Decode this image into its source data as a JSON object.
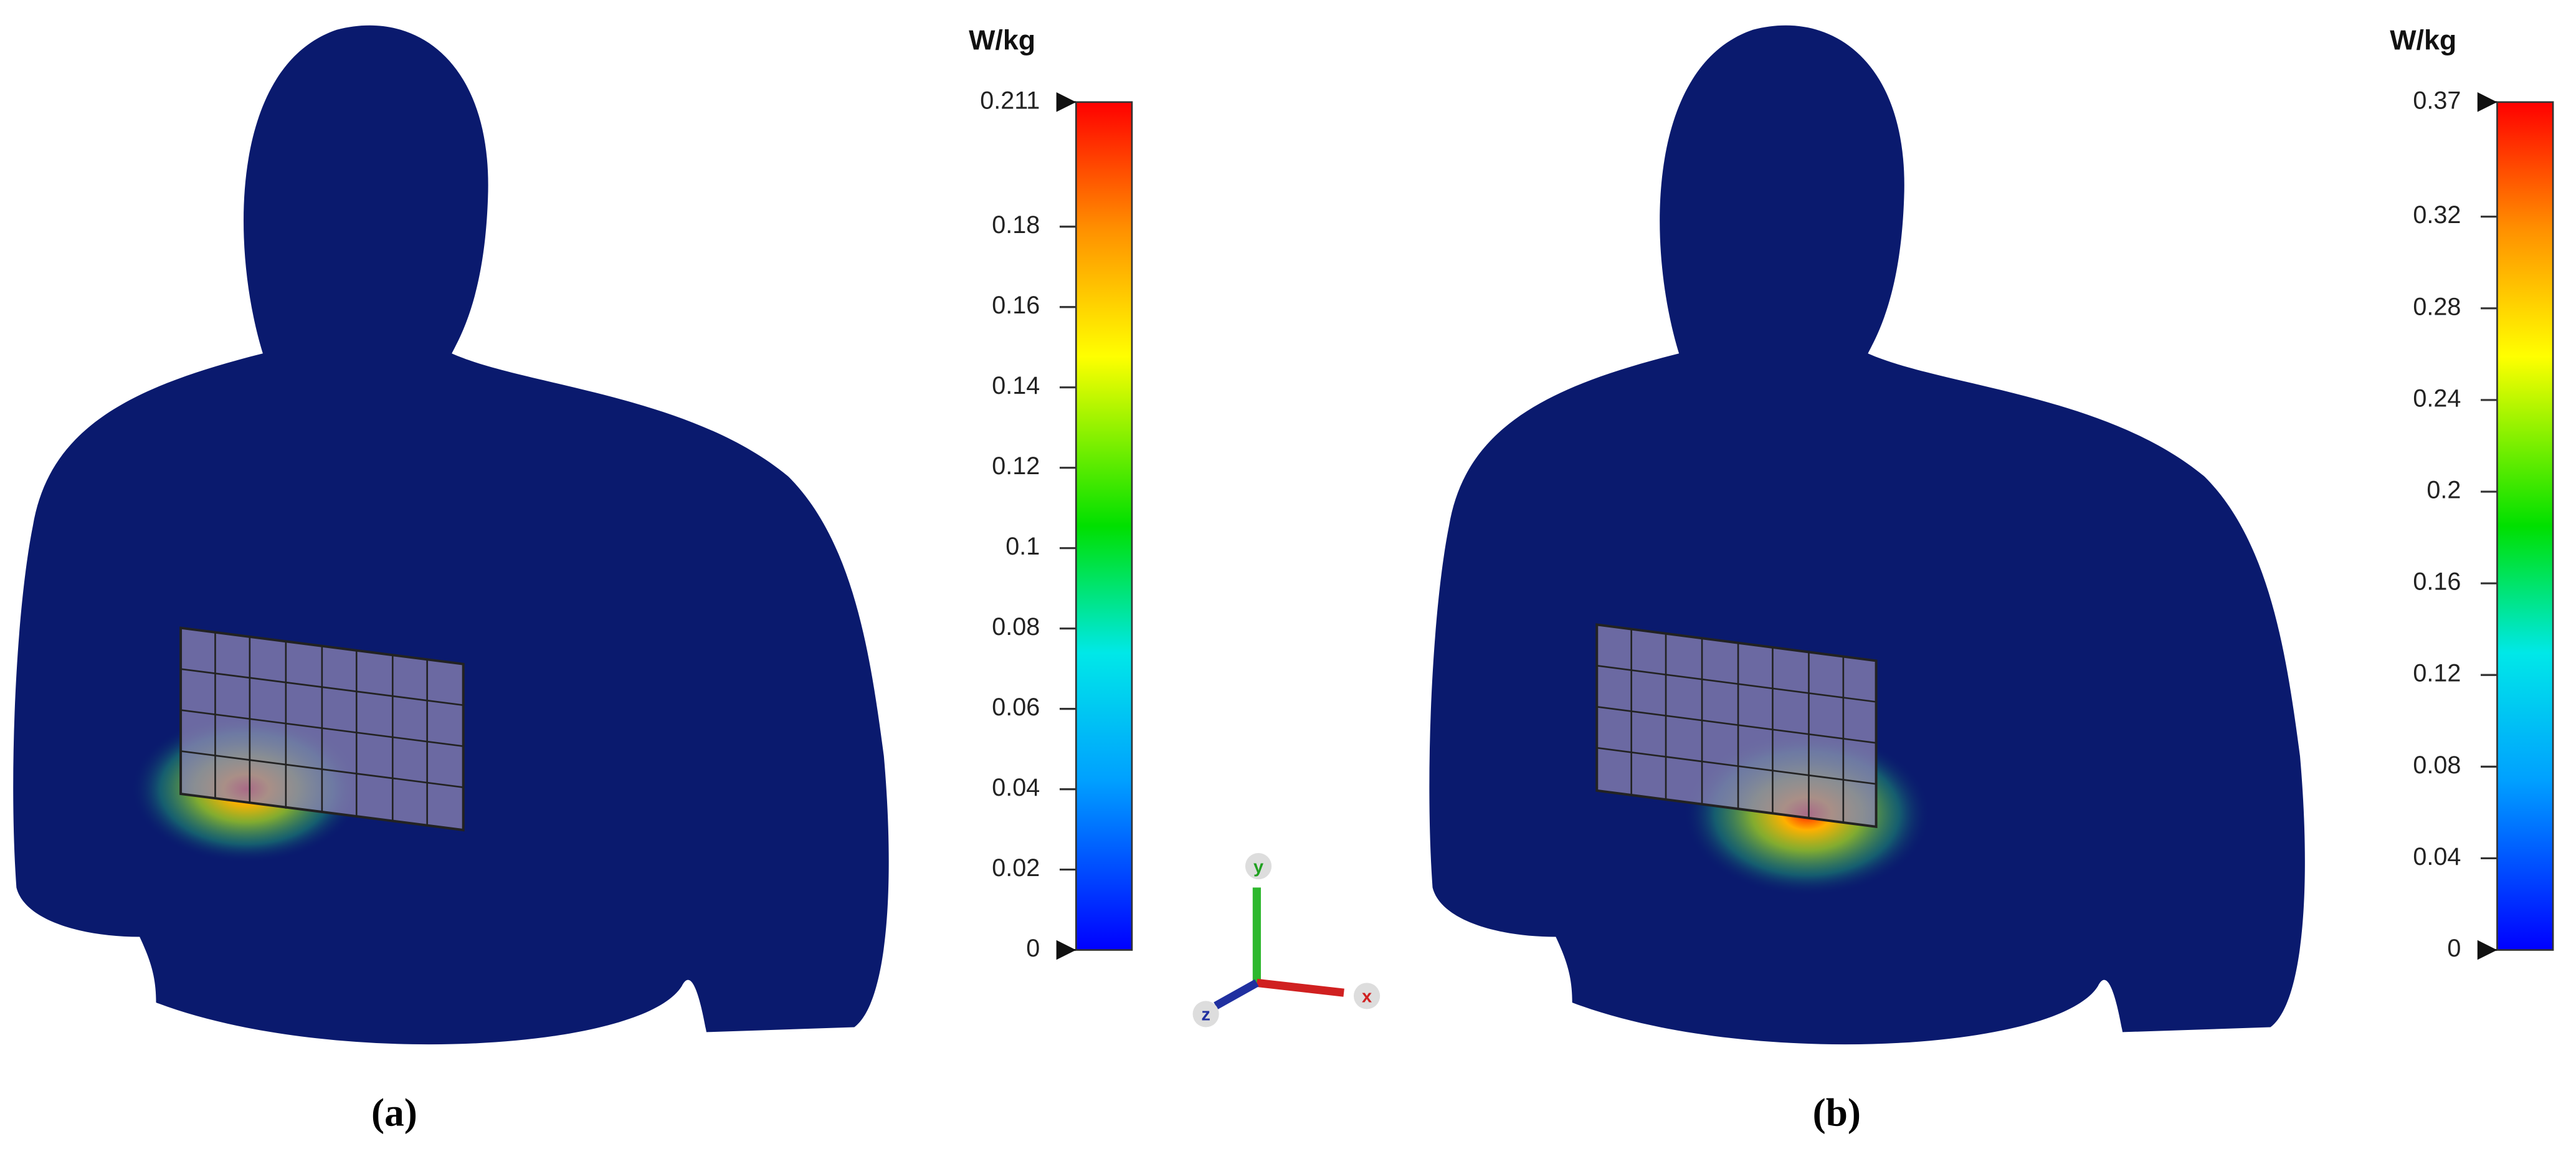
{
  "panels": [
    {
      "caption": "(a)",
      "colorbar": {
        "unit": "W/kg",
        "ticks": [
          0.211,
          0.18,
          0.16,
          0.14,
          0.12,
          0.1,
          0.08,
          0.06,
          0.04,
          0.02,
          0
        ]
      }
    },
    {
      "caption": "(b)",
      "colorbar": {
        "unit": "W/kg",
        "ticks": [
          0.37,
          0.32,
          0.28,
          0.24,
          0.2,
          0.16,
          0.12,
          0.08,
          0.04,
          0
        ]
      }
    }
  ],
  "axes_triad": {
    "labels": [
      "y",
      "z",
      "x"
    ]
  }
}
